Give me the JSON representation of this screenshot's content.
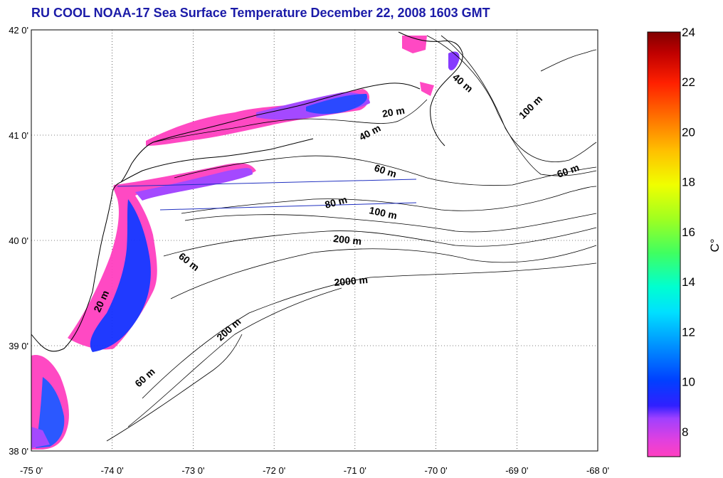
{
  "title": "RU COOL  NOAA-17 Sea Surface Temperature December 22, 2008 1603 GMT",
  "map": {
    "lon_range": [
      -75,
      -68
    ],
    "lat_range": [
      38,
      42
    ],
    "lon_ticks": [
      "-75 0'",
      "-74 0'",
      "-73 0'",
      "-72 0'",
      "-71 0'",
      "-70 0'",
      "-69 0'",
      "-68 0'"
    ],
    "lat_ticks": [
      "38 0'",
      "39 0'",
      "40 0'",
      "41 0'",
      "42 0'"
    ],
    "grid": "dotted",
    "contour_labels": [
      "20 m",
      "40 m",
      "60 m",
      "80 m",
      "100 m",
      "200 m",
      "2000 m",
      "40 m",
      "100 m",
      "60 m",
      "60 m",
      "20 m",
      "200 m",
      "60 m"
    ]
  },
  "colorbar": {
    "label": "C°",
    "range": [
      7,
      24
    ],
    "ticks": [
      "8",
      "10",
      "12",
      "14",
      "16",
      "18",
      "20",
      "22",
      "24"
    ],
    "colors": [
      "#ff40c0",
      "#c040f0",
      "#8030ff",
      "#2020ff",
      "#0050ff",
      "#0090ff",
      "#00d0ff",
      "#00f0c0",
      "#40ff60",
      "#a0ff20",
      "#f0ff00",
      "#ffc000",
      "#ff7000",
      "#ff2000",
      "#d00000",
      "#800000"
    ]
  }
}
